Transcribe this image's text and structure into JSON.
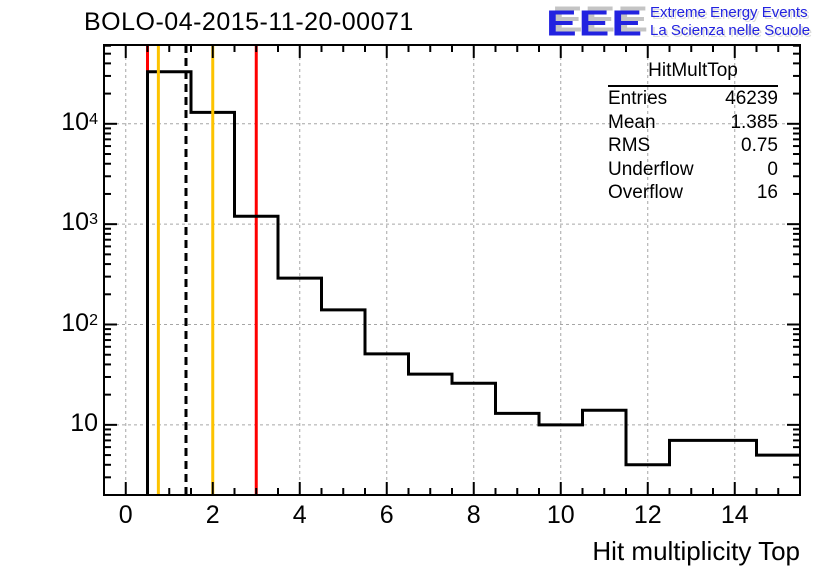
{
  "title": "BOLO-04-2015-11-20-00071",
  "logo": {
    "letters": "EEE",
    "line1": "Extreme Energy Events",
    "line2": "La Scienza nelle Scuole",
    "blue": "#2222e0",
    "shadow": "#c4c4c4"
  },
  "stats": {
    "title": "HitMultTop",
    "rows": [
      {
        "label": "Entries",
        "value": "46239"
      },
      {
        "label": "Mean",
        "value": "1.385"
      },
      {
        "label": "RMS",
        "value": "0.75"
      },
      {
        "label": "Underflow",
        "value": "0"
      },
      {
        "label": "Overflow",
        "value": "16"
      }
    ]
  },
  "chart_data": {
    "type": "histogram",
    "title": "BOLO-04-2015-11-20-00071",
    "xlabel": "Hit multiplicity Top",
    "ylabel": "",
    "x_range": [
      -0.5,
      15.5
    ],
    "y_range": [
      2,
      61000
    ],
    "y_scale": "log",
    "grid": true,
    "legend": "none",
    "bin_width": 1,
    "bin_centers": [
      0,
      1,
      2,
      3,
      4,
      5,
      6,
      7,
      8,
      9,
      10,
      11,
      12,
      13,
      14,
      15
    ],
    "counts": [
      0,
      33000,
      13000,
      1200,
      290,
      140,
      51,
      32,
      26,
      13,
      10,
      14,
      4,
      7,
      7,
      5
    ],
    "underflow": 0,
    "overflow": 16,
    "x_ticks": [
      {
        "v": 0,
        "label": "0"
      },
      {
        "v": 2,
        "label": "2"
      },
      {
        "v": 4,
        "label": "4"
      },
      {
        "v": 6,
        "label": "6"
      },
      {
        "v": 8,
        "label": "8"
      },
      {
        "v": 10,
        "label": "10"
      },
      {
        "v": 12,
        "label": "12"
      },
      {
        "v": 14,
        "label": "14"
      }
    ],
    "y_ticks": [
      {
        "v": 10,
        "base": "10",
        "sup": ""
      },
      {
        "v": 100,
        "base": "10",
        "sup": "2"
      },
      {
        "v": 1000,
        "base": "10",
        "sup": "3"
      },
      {
        "v": 10000,
        "base": "10",
        "sup": "4"
      }
    ],
    "vlines": [
      {
        "x": 0.5,
        "color": "#ff0000",
        "style": "solid"
      },
      {
        "x": 0.75,
        "color": "#fdc300",
        "style": "solid"
      },
      {
        "x": 1.385,
        "color": "#000000",
        "style": "dashed"
      },
      {
        "x": 2.0,
        "color": "#fdc300",
        "style": "solid"
      },
      {
        "x": 3.0,
        "color": "#ff0000",
        "style": "solid"
      }
    ],
    "colors": {
      "histogram_line": "#000000",
      "grid_line": "#a6a6a6",
      "frame": "#000000",
      "marker_red": "#ff0000",
      "marker_orange": "#fdc300"
    }
  }
}
